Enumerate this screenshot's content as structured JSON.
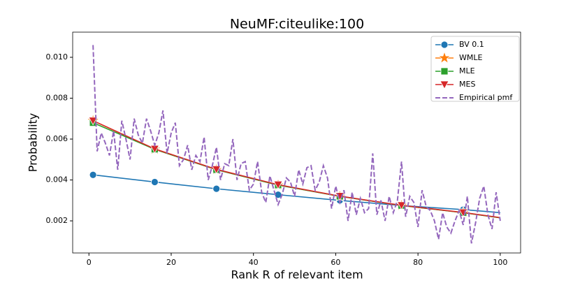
{
  "chart_data": {
    "type": "line",
    "title": "NeuMF:citeulike:100",
    "x_label": "Rank R of relevant item",
    "y_label": "Probability",
    "xlim": [
      -3.95,
      104.95
    ],
    "xticks": [
      0,
      20,
      40,
      60,
      80,
      100
    ],
    "ylim": [
      0.00043,
      0.01123
    ],
    "yticks": [
      0.002,
      0.004,
      0.006,
      0.008,
      {
        "value": 0.01,
        "label": "0.010"
      }
    ],
    "legend": "upper right",
    "markevery": 15,
    "series": [
      {
        "name": "BV 0.1",
        "color": "#1f77b4",
        "marker": "o",
        "linestyle": "solid",
        "x": [
          1,
          16,
          31,
          46,
          61,
          76,
          91,
          100
        ],
        "values": [
          0.00425,
          0.0039,
          0.00357,
          0.00328,
          0.003,
          0.00275,
          0.00255,
          0.0024
        ]
      },
      {
        "name": "WMLE",
        "color": "#ff7f0e",
        "marker": "*",
        "linestyle": "solid",
        "x": [
          1,
          16,
          31,
          46,
          61,
          76,
          91,
          100
        ],
        "values": [
          0.0069,
          0.0055,
          0.0045,
          0.00375,
          0.0032,
          0.00275,
          0.0024,
          0.00215
        ]
      },
      {
        "name": "MLE",
        "color": "#2ca02c",
        "marker": "s",
        "linestyle": "solid",
        "x": [
          1,
          16,
          31,
          46,
          61,
          76,
          91,
          100
        ],
        "values": [
          0.0068,
          0.0055,
          0.0045,
          0.00375,
          0.0032,
          0.00275,
          0.0024,
          0.00215
        ]
      },
      {
        "name": "MES",
        "color": "#d62728",
        "marker": "v",
        "linestyle": "solid",
        "x": [
          1,
          16,
          31,
          46,
          61,
          76,
          91,
          100
        ],
        "values": [
          0.0069,
          0.00552,
          0.00452,
          0.00377,
          0.00321,
          0.00276,
          0.00241,
          0.00216
        ]
      },
      {
        "name": "Empirical pmf",
        "color": "#9467bd",
        "marker": "none",
        "linestyle": "dashed",
        "x": [
          1,
          2,
          3,
          4,
          5,
          6,
          7,
          8,
          9,
          10,
          11,
          12,
          13,
          14,
          15,
          16,
          17,
          18,
          19,
          20,
          21,
          22,
          23,
          24,
          25,
          26,
          27,
          28,
          29,
          30,
          31,
          32,
          33,
          34,
          35,
          36,
          37,
          38,
          39,
          40,
          41,
          42,
          43,
          44,
          45,
          46,
          47,
          48,
          49,
          50,
          51,
          52,
          53,
          54,
          55,
          56,
          57,
          58,
          59,
          60,
          61,
          62,
          63,
          64,
          65,
          66,
          67,
          68,
          69,
          70,
          71,
          72,
          73,
          74,
          75,
          76,
          77,
          78,
          79,
          80,
          81,
          82,
          83,
          84,
          85,
          86,
          87,
          88,
          89,
          90,
          91,
          92,
          93,
          94,
          95,
          96,
          97,
          98,
          99,
          100
        ],
        "values": [
          0.0106,
          0.0054,
          0.0063,
          0.0058,
          0.0052,
          0.0064,
          0.0045,
          0.0069,
          0.006,
          0.005,
          0.007,
          0.0062,
          0.0058,
          0.007,
          0.0064,
          0.0057,
          0.0063,
          0.0074,
          0.0053,
          0.0063,
          0.0068,
          0.0047,
          0.005,
          0.0057,
          0.0045,
          0.0052,
          0.0049,
          0.0061,
          0.004,
          0.0047,
          0.0056,
          0.004,
          0.0048,
          0.0047,
          0.006,
          0.004,
          0.0048,
          0.0049,
          0.0035,
          0.0038,
          0.0049,
          0.0034,
          0.0029,
          0.0042,
          0.0035,
          0.0028,
          0.0033,
          0.0041,
          0.0039,
          0.0032,
          0.0045,
          0.0038,
          0.0046,
          0.0047,
          0.0035,
          0.0039,
          0.0047,
          0.0041,
          0.0026,
          0.0037,
          0.0029,
          0.0035,
          0.002,
          0.0034,
          0.0023,
          0.0031,
          0.0024,
          0.0026,
          0.0053,
          0.0023,
          0.003,
          0.002,
          0.0032,
          0.0024,
          0.003,
          0.0049,
          0.0022,
          0.0032,
          0.0029,
          0.0017,
          0.0035,
          0.0027,
          0.0025,
          0.002,
          0.0011,
          0.0024,
          0.0017,
          0.0014,
          0.002,
          0.0025,
          0.0018,
          0.0032,
          0.0009,
          0.0019,
          0.0031,
          0.0037,
          0.0023,
          0.0016,
          0.0034,
          0.002
        ]
      }
    ]
  }
}
